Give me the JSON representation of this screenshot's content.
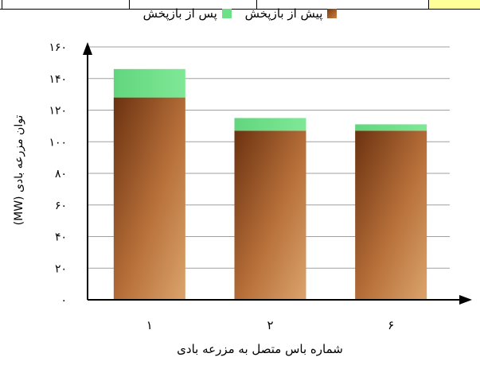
{
  "chart_data": {
    "type": "bar",
    "stacked": true,
    "categories": [
      "۱",
      "۲",
      "۶"
    ],
    "series": [
      {
        "name": "پیش از بازپخش",
        "values": [
          128,
          107,
          107
        ],
        "color": "#b8703a"
      },
      {
        "name": "پس از بازپخش",
        "values": [
          18,
          8,
          4
        ],
        "color": "#6fe08a"
      }
    ],
    "ylim": [
      0,
      160
    ],
    "yticks": [
      0,
      20,
      40,
      60,
      80,
      100,
      120,
      140,
      160
    ],
    "ytick_labels": [
      "۰",
      "۲۰",
      "۴۰",
      "۶۰",
      "۸۰",
      "۱۰۰",
      "۱۲۰",
      "۱۴۰",
      "۱۶۰"
    ],
    "xlabel": "شماره باس متصل به مزرعه بادی",
    "ylabel": "توان مزرعه بادی (MW)",
    "grid": true,
    "legend_position": "top"
  }
}
